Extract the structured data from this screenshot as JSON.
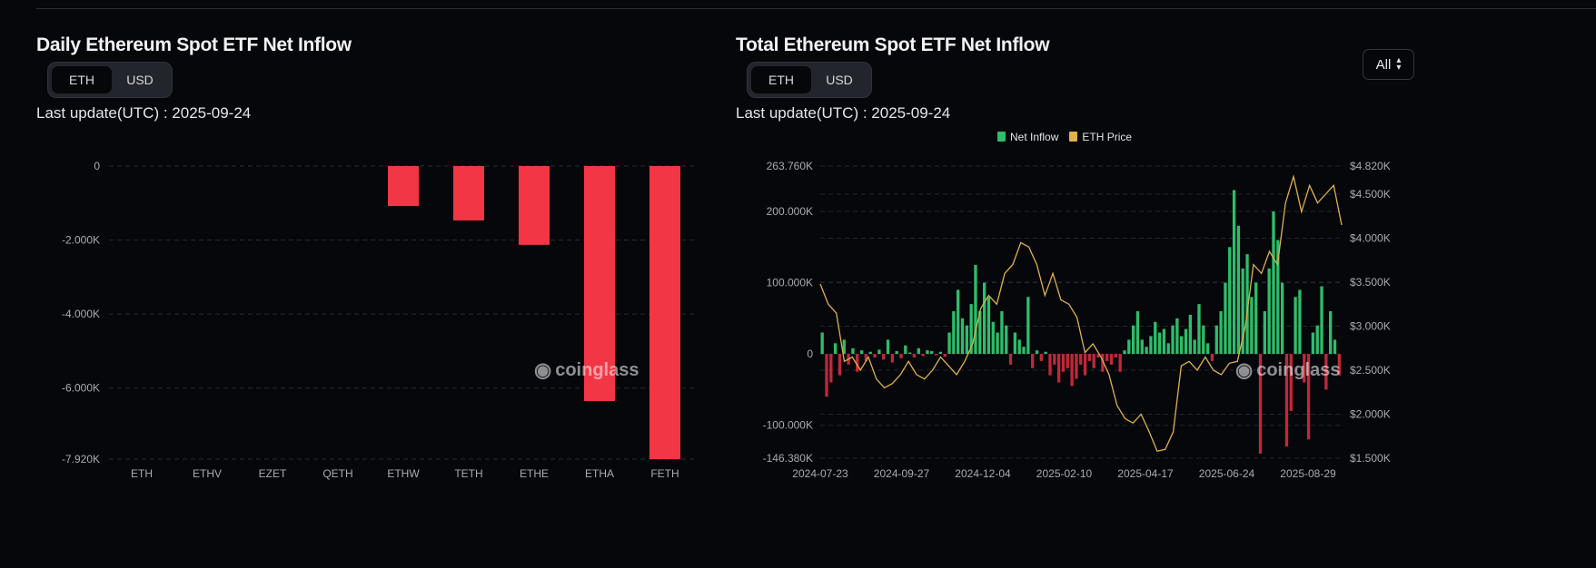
{
  "left": {
    "title": "Daily Ethereum Spot ETF Net Inflow",
    "toggle": {
      "options": [
        "ETH",
        "USD"
      ],
      "selected": "ETH"
    },
    "last_update": "Last update(UTC) : 2025-09-24",
    "watermark": "coinglass"
  },
  "right": {
    "title": "Total Ethereum Spot ETF Net Inflow",
    "toggle": {
      "options": [
        "ETH",
        "USD"
      ],
      "selected": "ETH"
    },
    "last_update": "Last update(UTC) : 2025-09-24",
    "range_select": "All",
    "watermark": "coinglass"
  },
  "colors": {
    "background": "#05070b",
    "negative": "#f23645",
    "positive": "#2ebd6b",
    "negative_dark": "#c2273a",
    "price": "#e0b04a"
  },
  "chart_data": [
    {
      "type": "bar",
      "categories": [
        "ETH",
        "ETHV",
        "EZET",
        "QETH",
        "ETHW",
        "TETH",
        "ETHE",
        "ETHA",
        "FETH"
      ],
      "values": [
        0,
        0,
        0,
        0,
        -1080,
        -1470,
        -2130,
        -6350,
        -7920
      ],
      "ylim": [
        -7920,
        0
      ],
      "yticks": [
        "0",
        "-2.000K",
        "-4.000K",
        "-6.000K",
        "-7.920K"
      ],
      "ytick_values": [
        0,
        -2000,
        -4000,
        -6000,
        -7920
      ],
      "grid": true
    },
    {
      "type": "bar+line",
      "legend": [
        "Net Inflow",
        "ETH Price"
      ],
      "legend_position": "top-center",
      "xticks": [
        "2024-07-23",
        "2024-09-27",
        "2024-12-04",
        "2025-02-10",
        "2025-04-17",
        "2025-06-24",
        "2025-08-29"
      ],
      "left_axis": {
        "ylim": [
          -146380,
          263760
        ],
        "ticks": [
          "263.760K",
          "200.000K",
          "100.000K",
          "0",
          "-100.000K",
          "-146.380K"
        ],
        "tick_values": [
          263760,
          200000,
          100000,
          0,
          -100000,
          -146380
        ]
      },
      "right_axis": {
        "ylim": [
          1500,
          4820
        ],
        "ticks": [
          "$4.820K",
          "$4.500K",
          "$4.000K",
          "$3.500K",
          "$3.000K",
          "$2.500K",
          "$2.000K",
          "$1.500K"
        ],
        "tick_values": [
          4820,
          4500,
          4000,
          3500,
          3000,
          2500,
          2000,
          1500
        ]
      },
      "series": [
        {
          "name": "Net Inflow",
          "axis": "left",
          "values": [
            30000,
            -60000,
            -40000,
            15000,
            -30000,
            20000,
            -15000,
            8000,
            -25000,
            5000,
            -10000,
            3000,
            -5000,
            6000,
            -8000,
            20000,
            -12000,
            4000,
            -6000,
            12000,
            2000,
            -5000,
            8000,
            -3000,
            5000,
            4000,
            -2000,
            3000,
            -4000,
            30000,
            60000,
            90000,
            50000,
            40000,
            70000,
            125000,
            60000,
            100000,
            80000,
            45000,
            30000,
            60000,
            40000,
            -15000,
            30000,
            20000,
            10000,
            80000,
            -20000,
            5000,
            -10000,
            3000,
            -30000,
            -15000,
            -40000,
            -25000,
            -20000,
            -45000,
            -35000,
            -15000,
            -30000,
            -10000,
            -20000,
            -5000,
            -25000,
            -10000,
            -15000,
            -5000,
            -25000,
            5000,
            20000,
            40000,
            60000,
            20000,
            10000,
            25000,
            45000,
            30000,
            35000,
            15000,
            40000,
            50000,
            25000,
            35000,
            55000,
            20000,
            70000,
            40000,
            15000,
            -10000,
            40000,
            60000,
            100000,
            150000,
            230000,
            180000,
            120000,
            140000,
            80000,
            100000,
            -140000,
            60000,
            120000,
            200000,
            160000,
            100000,
            -130000,
            -80000,
            80000,
            90000,
            -40000,
            -120000,
            30000,
            40000,
            95000,
            -50000,
            60000,
            20000,
            -30000
          ]
        },
        {
          "name": "ETH Price",
          "axis": "right",
          "values": [
            3480,
            3250,
            3150,
            2600,
            2650,
            2500,
            2650,
            2400,
            2300,
            2350,
            2450,
            2600,
            2450,
            2400,
            2500,
            2650,
            2550,
            2450,
            2600,
            2800,
            3200,
            3350,
            3250,
            3600,
            3700,
            3950,
            3900,
            3700,
            3350,
            3600,
            3300,
            3250,
            3100,
            2700,
            2800,
            2650,
            2450,
            2100,
            1950,
            1900,
            2000,
            1800,
            1580,
            1600,
            1800,
            2550,
            2600,
            2500,
            2650,
            2500,
            2450,
            2580,
            2600,
            3000,
            3700,
            3600,
            3850,
            3700,
            4400,
            4700,
            4300,
            4600,
            4400,
            4500,
            4600,
            4150
          ]
        }
      ],
      "grid": true
    }
  ]
}
